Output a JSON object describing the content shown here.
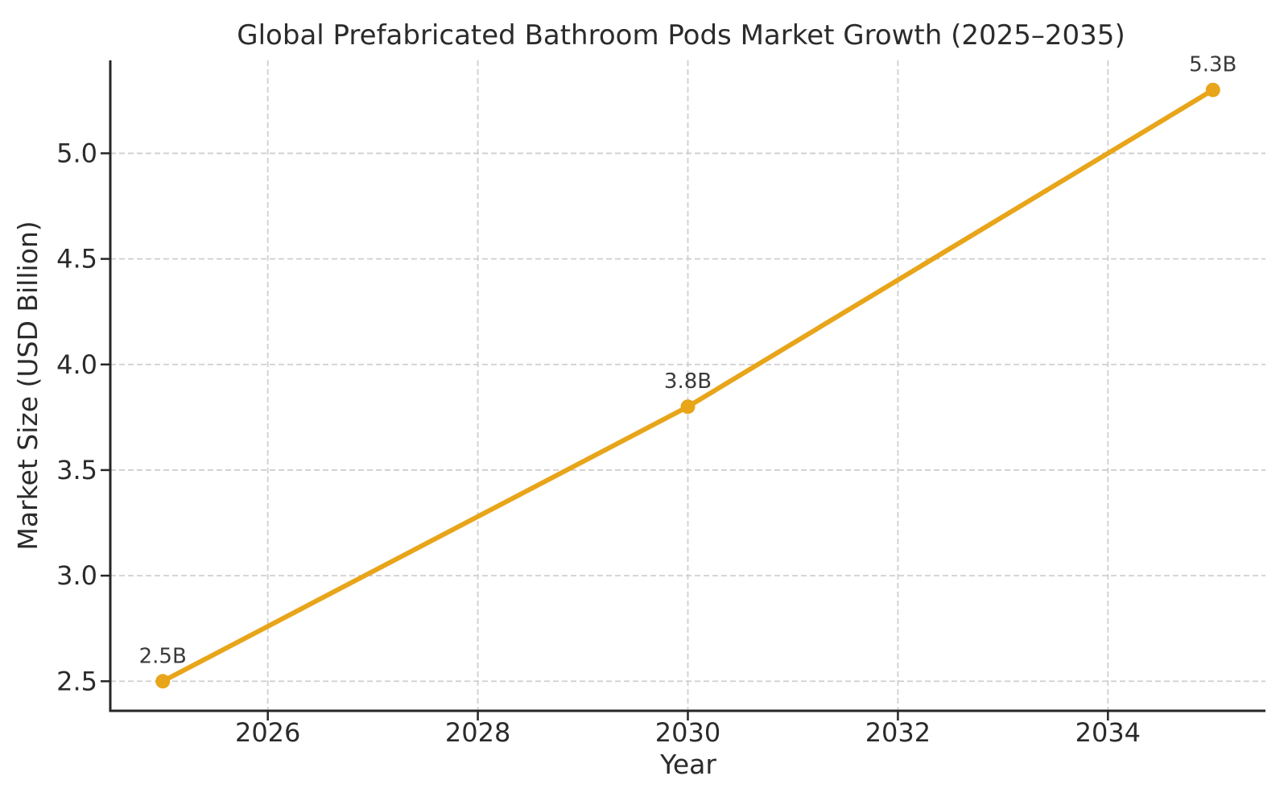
{
  "chart_data": {
    "type": "line",
    "title": "Global Prefabricated Bathroom Pods Market Growth (2025–2035)",
    "xlabel": "Year",
    "ylabel": "Market Size (USD Billion)",
    "x": [
      2025,
      2030,
      2035
    ],
    "series": [
      {
        "name": "Market Size",
        "values": [
          2.5,
          3.8,
          5.3
        ],
        "point_labels": [
          "2.5B",
          "3.8B",
          "5.3B"
        ]
      }
    ],
    "x_ticks": [
      2026,
      2028,
      2030,
      2032,
      2034
    ],
    "y_ticks": [
      2.5,
      3.0,
      3.5,
      4.0,
      4.5,
      5.0
    ],
    "xlim": [
      2024.5,
      2035.5
    ],
    "ylim": [
      2.36,
      5.44
    ],
    "grid": true,
    "grid_style": "dashed",
    "legend": "none",
    "colors": {
      "line": "#E8A51A",
      "marker": "#E8A51A",
      "grid": "#CFCFCF",
      "spine": "#262626",
      "text": "#2b2b2b"
    }
  }
}
